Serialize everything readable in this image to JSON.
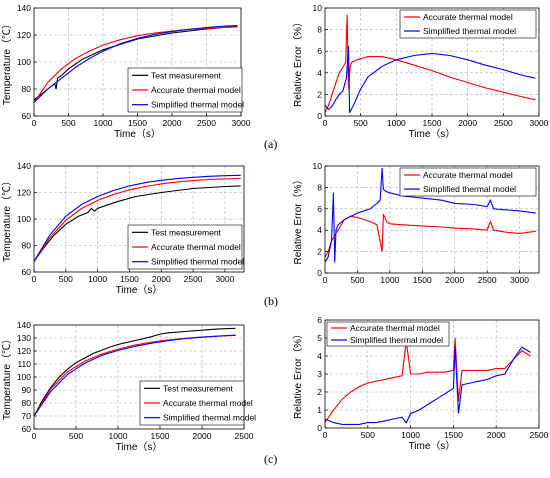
{
  "panel_labels": [
    "(a)",
    "(b)",
    "(c)"
  ],
  "chart_data": [
    {
      "id": "a-temp",
      "type": "line",
      "xlabel": "Time（s）",
      "ylabel": "Temperature（℃）",
      "xlim": [
        0,
        3000
      ],
      "ylim": [
        60,
        140
      ],
      "xticks": [
        0,
        500,
        1000,
        1500,
        2000,
        2500,
        3000
      ],
      "yticks": [
        60,
        80,
        100,
        120,
        140
      ],
      "grid": true,
      "legend_position": "bottom-right",
      "series": [
        {
          "name": "Test measurement",
          "color": "#000000",
          "x": [
            0,
            100,
            200,
            300,
            320,
            340,
            400,
            500,
            700,
            1000,
            1500,
            2000,
            2500,
            2950
          ],
          "y": [
            72,
            76,
            80,
            84,
            80,
            88,
            90,
            95,
            102,
            109,
            117,
            121.5,
            124.5,
            126.5
          ]
        },
        {
          "name": "Accurate thermal model",
          "color": "#ff0000",
          "x": [
            0,
            200,
            400,
            600,
            800,
            1000,
            1250,
            1500,
            1750,
            2000,
            2250,
            2500,
            2750,
            2950
          ],
          "y": [
            70,
            85,
            95,
            102.5,
            108,
            112.5,
            116.5,
            119.5,
            121.5,
            123,
            124.2,
            125,
            125.6,
            126
          ]
        },
        {
          "name": "Simplified thermal model",
          "color": "#0000ff",
          "x": [
            0,
            200,
            400,
            600,
            800,
            1000,
            1250,
            1500,
            1750,
            2000,
            2250,
            2500,
            2750,
            2950
          ],
          "y": [
            70,
            80,
            88,
            96,
            102.5,
            108,
            113.5,
            117.5,
            120.5,
            122.5,
            124.2,
            125.5,
            126.5,
            127
          ]
        }
      ]
    },
    {
      "id": "a-err",
      "type": "line",
      "xlabel": "Time（s）",
      "ylabel": "Relative Error（%）",
      "xlim": [
        0,
        3000
      ],
      "ylim": [
        0,
        10
      ],
      "xticks": [
        0,
        500,
        1000,
        1500,
        2000,
        2500,
        3000
      ],
      "yticks": [
        0,
        2,
        4,
        6,
        8,
        10
      ],
      "grid": true,
      "legend_position": "top-right",
      "series": [
        {
          "name": "Accurate thermal model",
          "color": "#ff0000",
          "x": [
            0,
            50,
            100,
            150,
            200,
            250,
            290,
            310,
            330,
            345,
            360,
            380,
            450,
            600,
            800,
            1000,
            1250,
            1500,
            1750,
            2000,
            2250,
            2500,
            2750,
            2950
          ],
          "y": [
            0.3,
            1.0,
            2.0,
            3.0,
            4.0,
            4.5,
            5.0,
            9.4,
            2.5,
            4.0,
            4.8,
            5.0,
            5.2,
            5.5,
            5.5,
            5.2,
            4.7,
            4.2,
            3.6,
            3.1,
            2.6,
            2.2,
            1.8,
            1.5
          ]
        },
        {
          "name": "Simplified thermal model",
          "color": "#0000ff",
          "x": [
            0,
            50,
            100,
            150,
            200,
            250,
            300,
            330,
            345,
            400,
            500,
            600,
            800,
            1000,
            1250,
            1500,
            1750,
            2000,
            2250,
            2500,
            2750,
            2950
          ],
          "y": [
            1.0,
            0.6,
            0.9,
            1.5,
            2.0,
            2.3,
            3.5,
            6.5,
            0.3,
            1.0,
            2.5,
            3.6,
            4.6,
            5.2,
            5.6,
            5.8,
            5.6,
            5.2,
            4.7,
            4.3,
            3.8,
            3.5
          ]
        }
      ]
    },
    {
      "id": "b-temp",
      "type": "line",
      "xlabel": "Time（s）",
      "ylabel": "Temperature（℃）",
      "xlim": [
        0,
        3300
      ],
      "ylim": [
        60,
        140
      ],
      "xticks": [
        0,
        500,
        1000,
        1500,
        2000,
        2500,
        3000
      ],
      "yticks": [
        60,
        80,
        100,
        120,
        140
      ],
      "grid": true,
      "legend_position": "bottom-right",
      "series": [
        {
          "name": "Test measurement",
          "color": "#000000",
          "x": [
            0,
            150,
            300,
            500,
            700,
            850,
            900,
            950,
            1000,
            1300,
            1600,
            2000,
            2500,
            3000,
            3250
          ],
          "y": [
            68,
            78,
            87,
            96,
            102,
            105,
            108,
            106,
            108,
            113,
            117,
            120,
            123,
            124.5,
            125
          ]
        },
        {
          "name": "Accurate thermal model",
          "color": "#ff0000",
          "x": [
            0,
            250,
            500,
            750,
            1000,
            1250,
            1500,
            1750,
            2000,
            2250,
            2500,
            2750,
            3000,
            3250
          ],
          "y": [
            68,
            86,
            99,
            108,
            114,
            118.5,
            122,
            124.5,
            126.5,
            128,
            129,
            129.8,
            130.3,
            130.6
          ]
        },
        {
          "name": "Simplified thermal model",
          "color": "#0000ff",
          "x": [
            0,
            250,
            500,
            750,
            1000,
            1250,
            1500,
            1750,
            2000,
            2250,
            2500,
            2750,
            3000,
            3250
          ],
          "y": [
            68,
            88,
            102,
            111,
            117,
            121.5,
            125,
            127.5,
            129.2,
            130.5,
            131.5,
            132.2,
            132.7,
            133
          ]
        }
      ]
    },
    {
      "id": "b-err",
      "type": "line",
      "xlabel": "",
      "ylabel": "Relative Error（%）",
      "xlim": [
        0,
        3300
      ],
      "ylim": [
        0,
        10
      ],
      "xticks": [
        0,
        500,
        1000,
        1500,
        2000,
        2500,
        3000
      ],
      "yticks": [
        0,
        2,
        4,
        6,
        8,
        10
      ],
      "grid": true,
      "legend_position": "top-right",
      "series": [
        {
          "name": "Accurate thermal model",
          "color": "#ff0000",
          "x": [
            0,
            50,
            100,
            150,
            200,
            300,
            400,
            500,
            600,
            700,
            800,
            850,
            880,
            900,
            950,
            1000,
            1200,
            1500,
            1800,
            2000,
            2300,
            2500,
            2550,
            2600,
            2800,
            3000,
            3250
          ],
          "y": [
            1.5,
            2.0,
            3.0,
            3.5,
            4.0,
            5.0,
            5.3,
            5.2,
            5.0,
            4.8,
            4.5,
            3.0,
            2.0,
            5.5,
            4.8,
            4.6,
            4.5,
            4.4,
            4.3,
            4.2,
            4.1,
            4.0,
            4.8,
            4.0,
            3.8,
            3.7,
            3.9
          ]
        },
        {
          "name": "Simplified thermal model",
          "color": "#0000ff",
          "x": [
            0,
            50,
            100,
            130,
            150,
            170,
            200,
            300,
            400,
            500,
            600,
            700,
            800,
            850,
            880,
            900,
            950,
            1000,
            1200,
            1500,
            1800,
            2000,
            2300,
            2500,
            2550,
            2600,
            2800,
            3000,
            3250
          ],
          "y": [
            1.0,
            1.5,
            3.0,
            7.5,
            1.0,
            4.0,
            4.5,
            5.0,
            5.3,
            5.6,
            5.8,
            6.0,
            6.5,
            6.8,
            9.8,
            7.8,
            7.6,
            7.5,
            7.2,
            7.0,
            6.8,
            6.5,
            6.4,
            6.2,
            6.8,
            6.0,
            5.9,
            5.8,
            5.6
          ]
        }
      ]
    },
    {
      "id": "c-temp",
      "type": "line",
      "xlabel": "Time（s）",
      "ylabel": "Temperature（℃）",
      "xlim": [
        0,
        2500
      ],
      "ylim": [
        60,
        140
      ],
      "xticks": [
        0,
        500,
        1000,
        1500,
        2000,
        2500
      ],
      "yticks": [
        60,
        70,
        80,
        90,
        100,
        110,
        120,
        130,
        140
      ],
      "grid": true,
      "legend_position": "bottom-right",
      "series": [
        {
          "name": "Test measurement",
          "color": "#000000",
          "x": [
            0,
            100,
            200,
            300,
            400,
            500,
            700,
            900,
            1000,
            1200,
            1400,
            1500,
            1600,
            1800,
            2000,
            2200,
            2400
          ],
          "y": [
            70,
            82,
            92,
            100,
            106,
            111,
            118,
            123,
            125,
            128,
            131,
            133,
            134,
            135,
            136,
            137,
            137.5
          ]
        },
        {
          "name": "Accurate thermal model",
          "color": "#ff0000",
          "x": [
            0,
            200,
            400,
            600,
            800,
            1000,
            1200,
            1400,
            1600,
            1800,
            2000,
            2200,
            2400
          ],
          "y": [
            70,
            91,
            104,
            112,
            117.5,
            121.5,
            124.5,
            126.8,
            128.5,
            129.8,
            130.8,
            131.5,
            132
          ]
        },
        {
          "name": "Simplified thermal model",
          "color": "#0000ff",
          "x": [
            0,
            200,
            400,
            600,
            800,
            1000,
            1200,
            1400,
            1600,
            1800,
            2000,
            2200,
            2400
          ],
          "y": [
            70,
            89,
            102,
            110.5,
            116.5,
            120.5,
            123.5,
            126,
            128,
            129.5,
            130.6,
            131.5,
            132.2
          ]
        }
      ]
    },
    {
      "id": "c-err",
      "type": "line",
      "xlabel": "Time（s）",
      "ylabel": "Relative Error（%）",
      "xlim": [
        0,
        2500
      ],
      "ylim": [
        0,
        6
      ],
      "xticks": [
        0,
        500,
        1000,
        1500,
        2000,
        2500
      ],
      "yticks": [
        0,
        1,
        2,
        3,
        4,
        5,
        6
      ],
      "grid": true,
      "legend_position": "top-left",
      "series": [
        {
          "name": "Accurate thermal model",
          "color": "#ff0000",
          "x": [
            0,
            100,
            200,
            300,
            400,
            500,
            600,
            700,
            800,
            900,
            950,
            1000,
            1100,
            1200,
            1300,
            1400,
            1500,
            1520,
            1560,
            1600,
            1700,
            1800,
            1900,
            2000,
            2100,
            2200,
            2300,
            2400
          ],
          "y": [
            0.3,
            1.0,
            1.6,
            2.0,
            2.3,
            2.5,
            2.6,
            2.7,
            2.8,
            2.9,
            4.8,
            3.0,
            3.0,
            3.1,
            3.1,
            3.1,
            3.2,
            5.0,
            1.5,
            3.2,
            3.2,
            3.2,
            3.2,
            3.3,
            3.3,
            3.8,
            4.3,
            4.0
          ]
        },
        {
          "name": "Simplified thermal model",
          "color": "#0000ff",
          "x": [
            0,
            100,
            200,
            300,
            400,
            500,
            600,
            700,
            800,
            900,
            950,
            1000,
            1100,
            1200,
            1300,
            1400,
            1500,
            1520,
            1560,
            1600,
            1700,
            1800,
            1900,
            2000,
            2100,
            2200,
            2300,
            2400
          ],
          "y": [
            0.5,
            0.3,
            0.2,
            0.2,
            0.2,
            0.3,
            0.3,
            0.4,
            0.5,
            0.6,
            0.3,
            0.8,
            1.0,
            1.3,
            1.6,
            1.9,
            2.2,
            4.5,
            0.8,
            2.4,
            2.5,
            2.6,
            2.7,
            2.9,
            3.0,
            3.8,
            4.5,
            4.2
          ]
        }
      ]
    }
  ]
}
